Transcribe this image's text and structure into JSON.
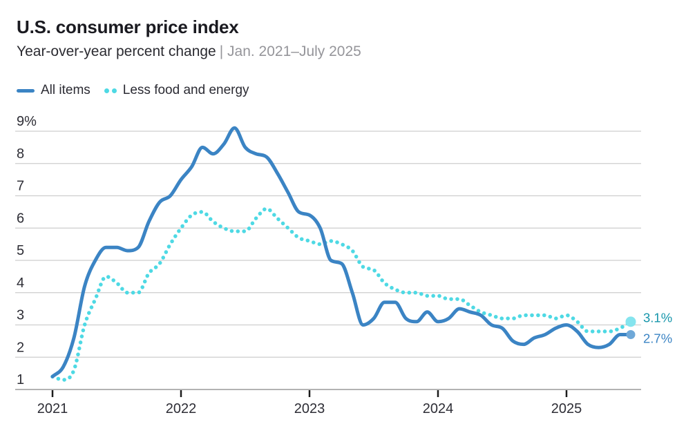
{
  "header": {
    "title": "U.S. consumer price index",
    "subtitle_main": "Year-over-year percent change",
    "subtitle_range": "| Jan. 2021–July 2025"
  },
  "legend": [
    {
      "label": "All items",
      "swatch": "solid-line-swatch",
      "color": "#3b84c4"
    },
    {
      "label": "Less food and energy",
      "swatch": "dotted-line-swatch",
      "color": "#4ed9e4"
    }
  ],
  "chart_data": {
    "type": "line",
    "frequency": "monthly",
    "x_start": "Jan. 2021",
    "x_end": "July 2025",
    "x_tick_labels": [
      "2021",
      "2022",
      "2023",
      "2024",
      "2025"
    ],
    "y_tick_labels": [
      "1",
      "2",
      "3",
      "4",
      "5",
      "6",
      "7",
      "8",
      "9%"
    ],
    "ylim": [
      1,
      9
    ],
    "grid": "horizontal",
    "legend_position": "top-left",
    "series": [
      {
        "name": "All items",
        "style": "solid",
        "color": "#3b84c4",
        "end_dot_color": "#6fa8d8",
        "end_label": "2.7%",
        "end_label_color": "#3b84c4",
        "values": [
          1.4,
          1.7,
          2.6,
          4.2,
          5.0,
          5.4,
          5.4,
          5.3,
          5.4,
          6.2,
          6.8,
          7.0,
          7.5,
          7.9,
          8.5,
          8.3,
          8.6,
          9.1,
          8.5,
          8.3,
          8.2,
          7.7,
          7.1,
          6.5,
          6.4,
          6.0,
          5.0,
          4.9,
          4.0,
          3.0,
          3.2,
          3.7,
          3.7,
          3.2,
          3.1,
          3.4,
          3.1,
          3.2,
          3.5,
          3.4,
          3.3,
          3.0,
          2.9,
          2.5,
          2.4,
          2.6,
          2.7,
          2.9,
          3.0,
          2.8,
          2.4,
          2.3,
          2.4,
          2.7,
          2.7
        ]
      },
      {
        "name": "Less food and energy",
        "style": "dotted",
        "color": "#4ed9e4",
        "end_dot_color": "#85e4ee",
        "end_label": "3.1%",
        "end_label_color": "#1796ab",
        "values": [
          1.4,
          1.3,
          1.6,
          3.0,
          3.8,
          4.5,
          4.3,
          4.0,
          4.0,
          4.6,
          4.9,
          5.5,
          6.0,
          6.4,
          6.5,
          6.2,
          6.0,
          5.9,
          5.9,
          6.3,
          6.6,
          6.3,
          6.0,
          5.7,
          5.6,
          5.5,
          5.6,
          5.5,
          5.3,
          4.8,
          4.7,
          4.3,
          4.1,
          4.0,
          4.0,
          3.9,
          3.9,
          3.8,
          3.8,
          3.6,
          3.4,
          3.3,
          3.2,
          3.2,
          3.3,
          3.3,
          3.3,
          3.2,
          3.3,
          3.1,
          2.8,
          2.8,
          2.8,
          2.9,
          3.1
        ]
      }
    ]
  },
  "colors": {
    "grid": "#cdcdcd",
    "axis": "#9a9a9a",
    "tick": "#1c1c1c",
    "tick_label": "#2d2d35",
    "title": "#1a1a20",
    "subtitle": "#2b2b31",
    "subtitle_muted": "#95959a"
  }
}
